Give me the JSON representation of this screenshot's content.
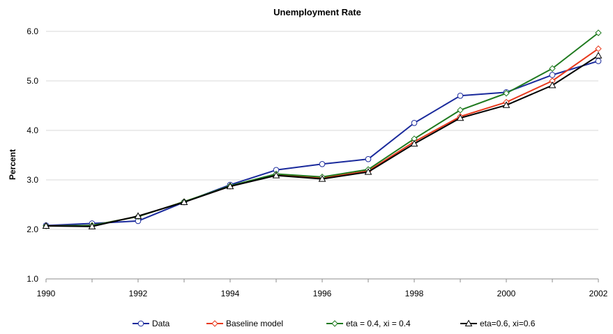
{
  "chart_data": {
    "type": "line",
    "title": "Unemployment Rate",
    "xlabel": "",
    "ylabel": "Percent",
    "x": [
      1990,
      1991,
      1992,
      1993,
      1994,
      1995,
      1996,
      1997,
      1998,
      1999,
      2000,
      2001,
      2002
    ],
    "x_ticks": [
      "1990",
      "1992",
      "1994",
      "1996",
      "1998",
      "2000",
      "2002"
    ],
    "y_ticks": [
      "1.0",
      "2.0",
      "3.0",
      "4.0",
      "5.0",
      "6.0"
    ],
    "xlim": [
      1990,
      2002
    ],
    "ylim": [
      1.0,
      6.0
    ],
    "grid": "horizontal",
    "legend_position": "bottom",
    "series": [
      {
        "name": "Data",
        "color": "#1a2a9c",
        "marker": "circle",
        "values": [
          2.08,
          2.12,
          2.17,
          2.55,
          2.9,
          3.2,
          3.32,
          3.42,
          4.15,
          4.7,
          4.77,
          5.12,
          5.4
        ]
      },
      {
        "name": "Baseline model",
        "color": "#e8391c",
        "marker": "diamond",
        "values": [
          2.07,
          2.08,
          2.26,
          2.56,
          2.87,
          3.1,
          3.04,
          3.18,
          3.77,
          4.28,
          4.57,
          5.0,
          5.65
        ]
      },
      {
        "name": "eta = 0.4, xi = 0.4",
        "color": "#1f7a1f",
        "marker": "diamond",
        "values": [
          2.07,
          2.08,
          2.26,
          2.56,
          2.88,
          3.12,
          3.06,
          3.21,
          3.83,
          4.41,
          4.75,
          5.25,
          5.97
        ]
      },
      {
        "name": "eta=0.6, xi=0.6",
        "color": "#000000",
        "marker": "triangle",
        "values": [
          2.07,
          2.06,
          2.27,
          2.55,
          2.87,
          3.09,
          3.02,
          3.16,
          3.73,
          4.25,
          4.51,
          4.91,
          5.51
        ]
      }
    ]
  }
}
